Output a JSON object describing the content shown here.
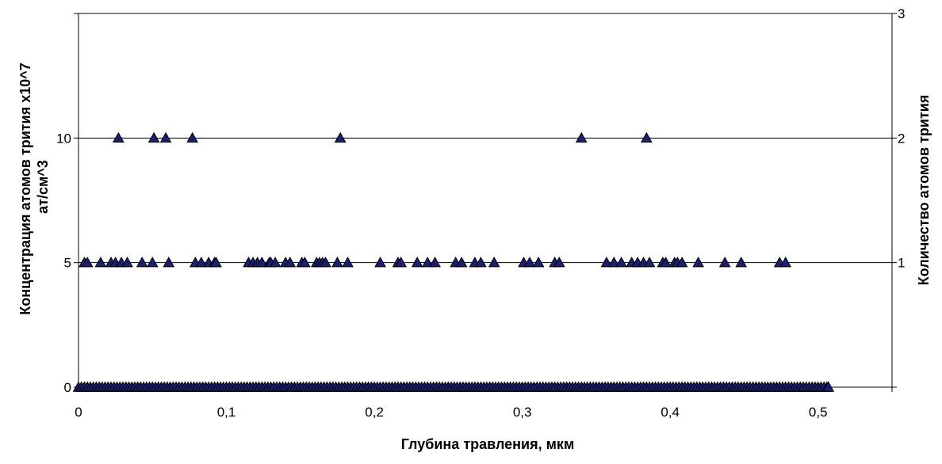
{
  "chart_data": {
    "type": "scatter",
    "title": "",
    "xlabel": "Глубина травления, мкм",
    "ylabel_lines": [
      "Концентрация атомов трития х10^7",
      "ат/см^3"
    ],
    "ylabel_right": "Количество атомов трития",
    "xlim": [
      0,
      0.55
    ],
    "ylim": [
      0,
      15
    ],
    "ylim_right": [
      0,
      3
    ],
    "x_ticks": [
      0,
      0.1,
      0.2,
      0.3,
      0.4,
      0.5
    ],
    "x_tick_labels": [
      "0",
      "0,1",
      "0,2",
      "0,3",
      "0,4",
      "0,5"
    ],
    "y_ticks": [
      0,
      5,
      10
    ],
    "y_tick_labels": [
      "0",
      "5",
      "10"
    ],
    "y_right_ticks": [
      1,
      2,
      3
    ],
    "y_right_tick_labels": [
      "1",
      "2",
      "3"
    ],
    "gridlines_y": [
      5,
      10
    ],
    "grid": true,
    "legend": "none",
    "marker": "triangle",
    "marker_color": "#1a1f6e",
    "series": [
      {
        "values_y": 10,
        "x": [
          0.027,
          0.051,
          0.059,
          0.077,
          0.177,
          0.34,
          0.384
        ]
      },
      {
        "values_y": 5,
        "x": [
          0.004,
          0.006,
          0.015,
          0.022,
          0.025,
          0.029,
          0.033,
          0.043,
          0.05,
          0.061,
          0.079,
          0.083,
          0.088,
          0.092,
          0.093,
          0.115,
          0.118,
          0.121,
          0.124,
          0.129,
          0.13,
          0.133,
          0.14,
          0.143,
          0.151,
          0.153,
          0.161,
          0.163,
          0.165,
          0.167,
          0.175,
          0.182,
          0.204,
          0.216,
          0.218,
          0.229,
          0.236,
          0.241,
          0.255,
          0.259,
          0.268,
          0.272,
          0.281,
          0.301,
          0.305,
          0.311,
          0.322,
          0.325,
          0.357,
          0.362,
          0.367,
          0.374,
          0.378,
          0.382,
          0.386,
          0.395,
          0.397,
          0.403,
          0.405,
          0.408,
          0.419,
          0.437,
          0.448,
          0.474,
          0.478
        ]
      },
      {
        "values_y": 0,
        "x_range": [
          0,
          0.506
        ],
        "x_step": 0.002,
        "extra_x": [
          0.507
        ]
      }
    ]
  }
}
